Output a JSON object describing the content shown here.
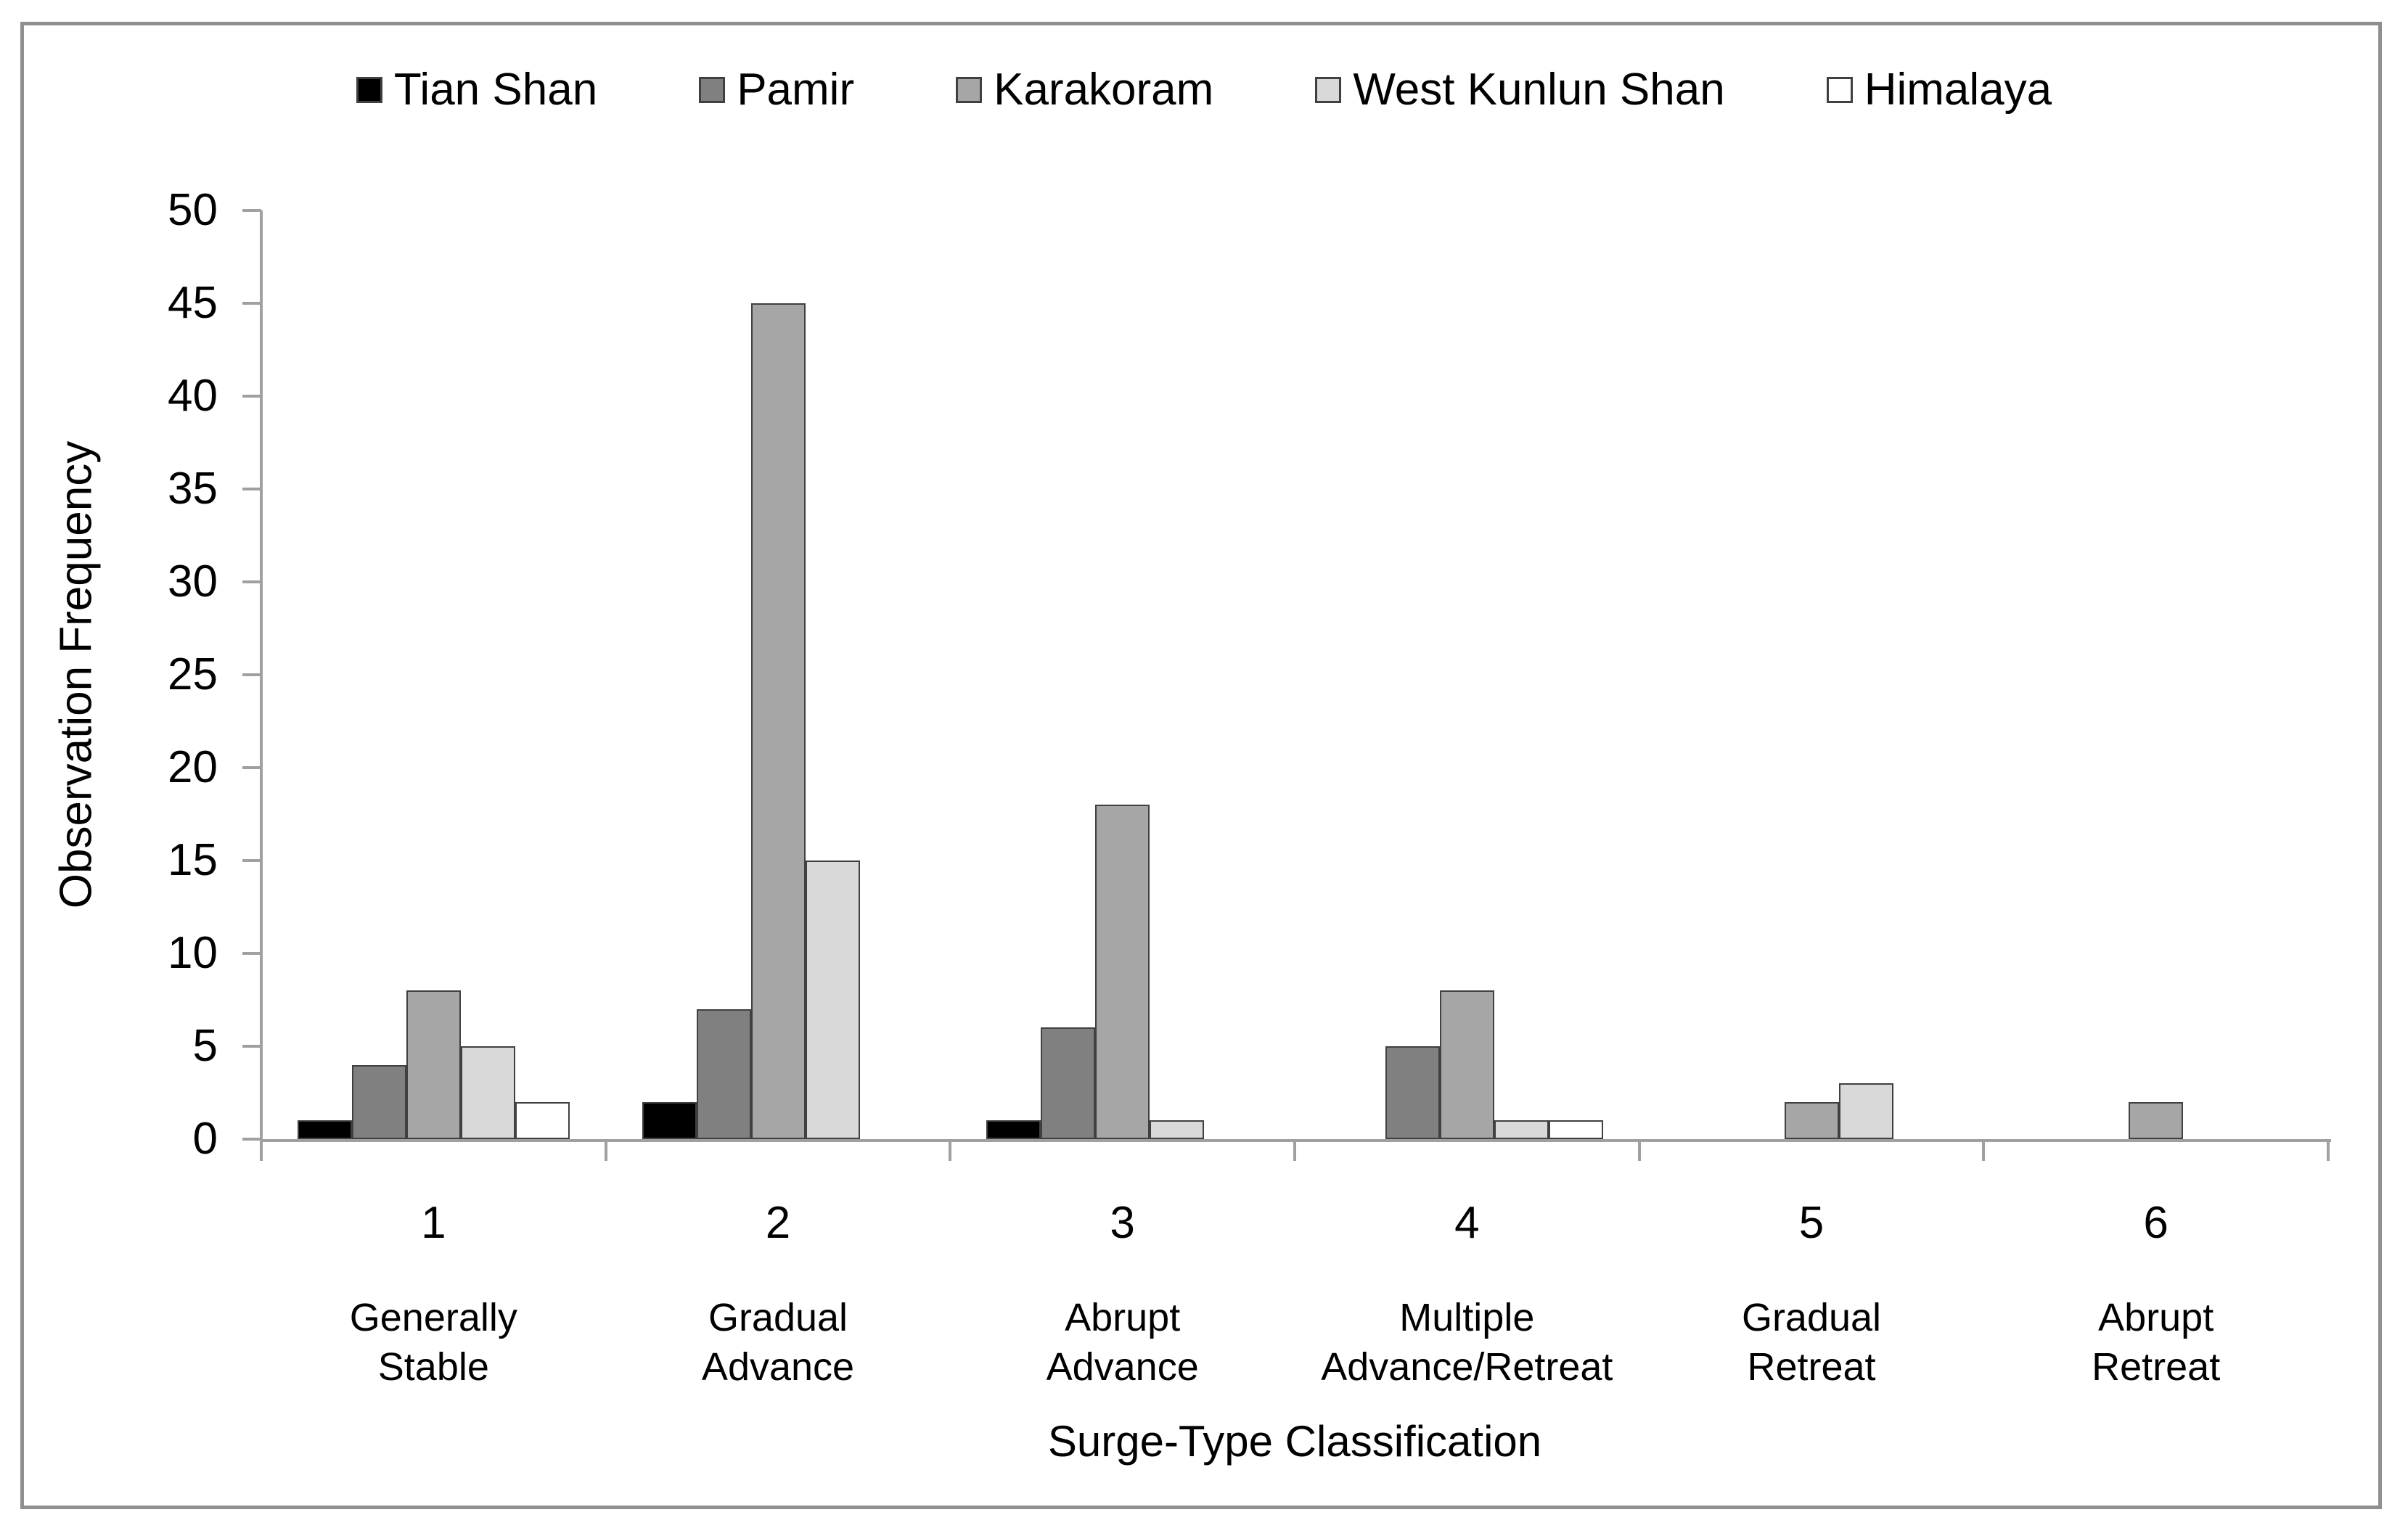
{
  "figure": {
    "border_color": "#8f8f8f",
    "background": "#ffffff"
  },
  "chart_data": {
    "type": "bar",
    "title": "",
    "xlabel": "Surge-Type Classification",
    "ylabel": "Observation Frequency",
    "ylim": [
      0,
      50
    ],
    "ytick_step": 5,
    "grid": false,
    "legend_position": "top",
    "axis_color": "#a0a0a0",
    "bar_border_color": "#404040",
    "categories": [
      {
        "number": "1",
        "name": "Generally Stable",
        "name_lines": [
          "Generally",
          "Stable"
        ]
      },
      {
        "number": "2",
        "name": "Gradual Advance",
        "name_lines": [
          "Gradual",
          "Advance"
        ]
      },
      {
        "number": "3",
        "name": "Abrupt Advance",
        "name_lines": [
          "Abrupt",
          "Advance"
        ]
      },
      {
        "number": "4",
        "name": "Multiple Advance/Retreat",
        "name_lines": [
          "Multiple",
          "Advance/Retreat"
        ]
      },
      {
        "number": "5",
        "name": "Gradual Retreat",
        "name_lines": [
          "Gradual",
          "Retreat"
        ]
      },
      {
        "number": "6",
        "name": "Abrupt Retreat",
        "name_lines": [
          "Abrupt",
          "Retreat"
        ]
      }
    ],
    "series": [
      {
        "name": "Tian Shan",
        "color": "#000000",
        "values": [
          1,
          2,
          1,
          0,
          0,
          0
        ]
      },
      {
        "name": "Pamir",
        "color": "#808080",
        "values": [
          4,
          7,
          6,
          5,
          0,
          0
        ]
      },
      {
        "name": "Karakoram",
        "color": "#a6a6a6",
        "values": [
          8,
          45,
          18,
          8,
          2,
          2
        ]
      },
      {
        "name": "West Kunlun Shan",
        "color": "#d9d9d9",
        "values": [
          5,
          15,
          1,
          1,
          3,
          0
        ]
      },
      {
        "name": "Himalaya",
        "color": "#ffffff",
        "values": [
          2,
          0,
          0,
          1,
          0,
          0
        ]
      }
    ],
    "yticks": [
      0,
      5,
      10,
      15,
      20,
      25,
      30,
      35,
      40,
      45,
      50
    ]
  }
}
